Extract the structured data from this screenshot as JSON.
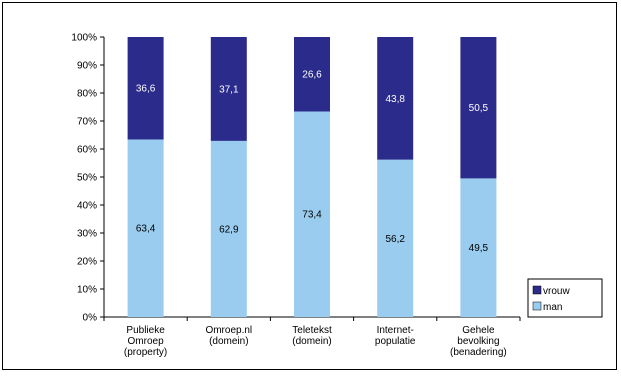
{
  "chart_data": {
    "type": "bar",
    "stacked": true,
    "percent": true,
    "categories": [
      [
        "Publieke",
        "Omroep",
        "(property)"
      ],
      [
        "Omroep.nl",
        "(domein)"
      ],
      [
        "Teletekst",
        "(domein)"
      ],
      [
        "Internet-",
        "populatie"
      ],
      [
        "Gehele",
        "bevolking",
        "(benadering)"
      ]
    ],
    "series": [
      {
        "name": "man",
        "values": [
          63.4,
          62.9,
          73.4,
          56.2,
          49.5
        ],
        "labels": [
          "63,4",
          "62,9",
          "73,4",
          "56,2",
          "49,5"
        ],
        "color": "#99CCEE"
      },
      {
        "name": "vrouw",
        "values": [
          36.6,
          37.1,
          26.6,
          43.8,
          50.5
        ],
        "labels": [
          "36,6",
          "37,1",
          "26,6",
          "43,8",
          "50,5"
        ],
        "color": "#2B2B8C"
      }
    ],
    "yticks": [
      "0%",
      "10%",
      "20%",
      "30%",
      "40%",
      "50%",
      "60%",
      "70%",
      "80%",
      "90%",
      "100%"
    ],
    "ylim": [
      0,
      100
    ],
    "grid": false,
    "legend_position": "right"
  }
}
